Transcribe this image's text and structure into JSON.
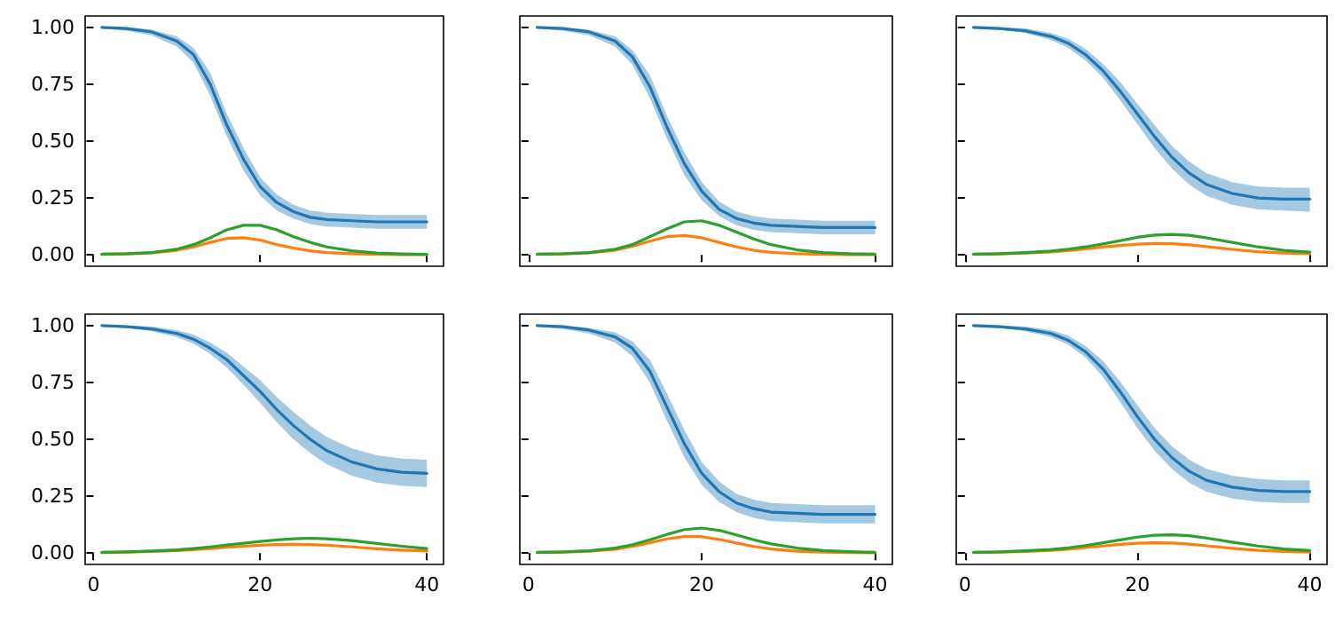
{
  "chart_data": [
    {
      "type": "line",
      "tick_labels": "y",
      "x": [
        1,
        4,
        7,
        10,
        12,
        14,
        16,
        18,
        20,
        22,
        24,
        26,
        28,
        31,
        34,
        37,
        40
      ],
      "xlim": [
        -1,
        42
      ],
      "ylim": [
        -0.05,
        1.05
      ],
      "xticks": [
        {
          "value": 0,
          "label": null
        },
        {
          "value": 20,
          "label": null
        },
        {
          "value": 40,
          "label": null
        }
      ],
      "yticks": [
        {
          "value": 0,
          "label": "0.00"
        },
        {
          "value": 0.25,
          "label": "0.25"
        },
        {
          "value": 0.5,
          "label": "0.50"
        },
        {
          "value": 0.75,
          "label": "0.75"
        },
        {
          "value": 1,
          "label": "1.00"
        }
      ],
      "series": [
        {
          "color": "#1f77b4",
          "values": [
            1.0,
            0.995,
            0.98,
            0.94,
            0.88,
            0.75,
            0.57,
            0.42,
            0.3,
            0.23,
            0.19,
            0.165,
            0.155,
            0.15,
            0.145,
            0.145,
            0.145
          ],
          "lower": [
            0.995,
            0.985,
            0.965,
            0.915,
            0.845,
            0.7,
            0.52,
            0.37,
            0.26,
            0.195,
            0.16,
            0.135,
            0.125,
            0.12,
            0.115,
            0.115,
            0.115
          ],
          "upper": [
            1.0,
            1.0,
            0.99,
            0.96,
            0.91,
            0.8,
            0.62,
            0.47,
            0.34,
            0.265,
            0.22,
            0.195,
            0.185,
            0.18,
            0.175,
            0.175,
            0.175
          ]
        },
        {
          "color": "#ff7f0e",
          "values": [
            0.002,
            0.004,
            0.009,
            0.02,
            0.035,
            0.055,
            0.072,
            0.075,
            0.065,
            0.045,
            0.03,
            0.018,
            0.01,
            0.005,
            0.002,
            0.001,
            0.001
          ]
        },
        {
          "color": "#2ca02c",
          "values": [
            0.003,
            0.005,
            0.01,
            0.025,
            0.045,
            0.075,
            0.11,
            0.13,
            0.13,
            0.11,
            0.08,
            0.055,
            0.035,
            0.018,
            0.008,
            0.004,
            0.002
          ]
        }
      ]
    },
    {
      "type": "line",
      "tick_labels": false,
      "x": [
        1,
        4,
        7,
        10,
        12,
        14,
        16,
        18,
        20,
        22,
        24,
        26,
        28,
        31,
        34,
        37,
        40
      ],
      "xlim": [
        -1,
        42
      ],
      "ylim": [
        -0.05,
        1.05
      ],
      "xticks": [
        {
          "value": 0,
          "label": null
        },
        {
          "value": 20,
          "label": null
        },
        {
          "value": 40,
          "label": null
        }
      ],
      "yticks": [
        {
          "value": 0,
          "label": null
        },
        {
          "value": 0.25,
          "label": null
        },
        {
          "value": 0.5,
          "label": null
        },
        {
          "value": 0.75,
          "label": null
        },
        {
          "value": 1,
          "label": null
        }
      ],
      "series": [
        {
          "color": "#1f77b4",
          "values": [
            1.0,
            0.995,
            0.98,
            0.94,
            0.87,
            0.74,
            0.56,
            0.4,
            0.28,
            0.2,
            0.16,
            0.14,
            0.13,
            0.125,
            0.12,
            0.12,
            0.12
          ],
          "lower": [
            0.995,
            0.985,
            0.965,
            0.915,
            0.835,
            0.69,
            0.51,
            0.35,
            0.24,
            0.17,
            0.13,
            0.11,
            0.1,
            0.095,
            0.09,
            0.09,
            0.09
          ],
          "upper": [
            1.0,
            1.0,
            0.99,
            0.96,
            0.9,
            0.79,
            0.61,
            0.45,
            0.32,
            0.235,
            0.19,
            0.17,
            0.16,
            0.155,
            0.15,
            0.15,
            0.15
          ]
        },
        {
          "color": "#ff7f0e",
          "values": [
            0.002,
            0.004,
            0.009,
            0.02,
            0.038,
            0.06,
            0.08,
            0.085,
            0.075,
            0.055,
            0.035,
            0.02,
            0.011,
            0.005,
            0.002,
            0.001,
            0.001
          ]
        },
        {
          "color": "#2ca02c",
          "values": [
            0.003,
            0.005,
            0.01,
            0.025,
            0.045,
            0.08,
            0.115,
            0.145,
            0.15,
            0.13,
            0.1,
            0.07,
            0.045,
            0.022,
            0.01,
            0.005,
            0.003
          ]
        }
      ]
    },
    {
      "type": "line",
      "tick_labels": false,
      "x": [
        1,
        4,
        7,
        10,
        12,
        14,
        16,
        18,
        20,
        22,
        24,
        26,
        28,
        31,
        34,
        37,
        40
      ],
      "xlim": [
        -1,
        42
      ],
      "ylim": [
        -0.05,
        1.05
      ],
      "xticks": [
        {
          "value": 0,
          "label": null
        },
        {
          "value": 20,
          "label": null
        },
        {
          "value": 40,
          "label": null
        }
      ],
      "yticks": [
        {
          "value": 0,
          "label": null
        },
        {
          "value": 0.25,
          "label": null
        },
        {
          "value": 0.5,
          "label": null
        },
        {
          "value": 0.75,
          "label": null
        },
        {
          "value": 1,
          "label": null
        }
      ],
      "series": [
        {
          "color": "#1f77b4",
          "values": [
            1.0,
            0.995,
            0.985,
            0.96,
            0.93,
            0.88,
            0.81,
            0.72,
            0.62,
            0.52,
            0.43,
            0.36,
            0.31,
            0.27,
            0.25,
            0.245,
            0.245
          ],
          "lower": [
            0.995,
            0.99,
            0.975,
            0.945,
            0.91,
            0.855,
            0.78,
            0.68,
            0.575,
            0.47,
            0.38,
            0.31,
            0.26,
            0.22,
            0.2,
            0.195,
            0.19
          ],
          "upper": [
            1.0,
            1.0,
            0.995,
            0.975,
            0.95,
            0.905,
            0.84,
            0.76,
            0.665,
            0.57,
            0.48,
            0.41,
            0.36,
            0.32,
            0.3,
            0.295,
            0.295
          ]
        },
        {
          "color": "#ff7f0e",
          "values": [
            0.002,
            0.004,
            0.008,
            0.013,
            0.019,
            0.026,
            0.034,
            0.041,
            0.047,
            0.05,
            0.049,
            0.044,
            0.036,
            0.024,
            0.014,
            0.008,
            0.005
          ]
        },
        {
          "color": "#2ca02c",
          "values": [
            0.003,
            0.005,
            0.01,
            0.017,
            0.025,
            0.035,
            0.048,
            0.062,
            0.077,
            0.087,
            0.09,
            0.086,
            0.075,
            0.055,
            0.035,
            0.02,
            0.012
          ]
        }
      ]
    },
    {
      "type": "line",
      "x": [
        1,
        4,
        7,
        10,
        12,
        14,
        16,
        18,
        20,
        22,
        24,
        26,
        28,
        31,
        34,
        37,
        40
      ],
      "xlim": [
        -1,
        42
      ],
      "ylim": [
        -0.05,
        1.05
      ],
      "xticks": [
        0,
        20,
        40
      ],
      "yticks": [
        {
          "value": 0,
          "label": "0.00"
        },
        {
          "value": 0.25,
          "label": "0.25"
        },
        {
          "value": 0.5,
          "label": "0.50"
        },
        {
          "value": 0.75,
          "label": "0.75"
        },
        {
          "value": 1,
          "label": "1.00"
        }
      ],
      "series": [
        {
          "color": "#1f77b4",
          "values": [
            1.0,
            0.995,
            0.985,
            0.965,
            0.94,
            0.9,
            0.85,
            0.78,
            0.71,
            0.63,
            0.56,
            0.5,
            0.45,
            0.4,
            0.37,
            0.355,
            0.35
          ],
          "lower": [
            0.995,
            0.99,
            0.975,
            0.95,
            0.92,
            0.875,
            0.815,
            0.74,
            0.66,
            0.575,
            0.5,
            0.44,
            0.39,
            0.34,
            0.31,
            0.295,
            0.29
          ],
          "upper": [
            1.0,
            1.0,
            0.995,
            0.98,
            0.96,
            0.925,
            0.88,
            0.82,
            0.76,
            0.685,
            0.62,
            0.56,
            0.51,
            0.46,
            0.43,
            0.415,
            0.41
          ]
        },
        {
          "color": "#ff7f0e",
          "values": [
            0.002,
            0.004,
            0.007,
            0.011,
            0.015,
            0.02,
            0.025,
            0.03,
            0.034,
            0.037,
            0.038,
            0.037,
            0.034,
            0.027,
            0.019,
            0.013,
            0.009
          ]
        },
        {
          "color": "#2ca02c",
          "values": [
            0.003,
            0.005,
            0.009,
            0.014,
            0.02,
            0.027,
            0.035,
            0.043,
            0.051,
            0.058,
            0.063,
            0.065,
            0.063,
            0.055,
            0.042,
            0.03,
            0.02
          ]
        }
      ]
    },
    {
      "type": "line",
      "tick_labels": "x",
      "x": [
        1,
        4,
        7,
        10,
        12,
        14,
        16,
        18,
        20,
        22,
        24,
        26,
        28,
        31,
        34,
        37,
        40
      ],
      "xlim": [
        -1,
        42
      ],
      "ylim": [
        -0.05,
        1.05
      ],
      "xticks": [
        0,
        20,
        40
      ],
      "yticks": [
        {
          "value": 0,
          "label": null
        },
        {
          "value": 0.25,
          "label": null
        },
        {
          "value": 0.5,
          "label": null
        },
        {
          "value": 0.75,
          "label": null
        },
        {
          "value": 1,
          "label": null
        }
      ],
      "series": [
        {
          "color": "#1f77b4",
          "values": [
            1.0,
            0.995,
            0.98,
            0.95,
            0.9,
            0.8,
            0.64,
            0.48,
            0.35,
            0.27,
            0.22,
            0.195,
            0.18,
            0.175,
            0.17,
            0.17,
            0.17
          ],
          "lower": [
            0.995,
            0.985,
            0.965,
            0.925,
            0.865,
            0.75,
            0.58,
            0.42,
            0.3,
            0.225,
            0.18,
            0.155,
            0.14,
            0.135,
            0.13,
            0.13,
            0.13
          ],
          "upper": [
            1.0,
            1.0,
            0.99,
            0.97,
            0.93,
            0.85,
            0.7,
            0.54,
            0.4,
            0.315,
            0.26,
            0.235,
            0.22,
            0.215,
            0.21,
            0.21,
            0.21
          ]
        },
        {
          "color": "#ff7f0e",
          "values": [
            0.002,
            0.004,
            0.008,
            0.017,
            0.029,
            0.045,
            0.062,
            0.073,
            0.072,
            0.06,
            0.044,
            0.029,
            0.018,
            0.008,
            0.004,
            0.002,
            0.001
          ]
        },
        {
          "color": "#2ca02c",
          "values": [
            0.003,
            0.005,
            0.01,
            0.022,
            0.037,
            0.058,
            0.082,
            0.103,
            0.11,
            0.1,
            0.08,
            0.058,
            0.04,
            0.022,
            0.011,
            0.006,
            0.003
          ]
        }
      ]
    },
    {
      "type": "line",
      "tick_labels": "x",
      "x": [
        1,
        4,
        7,
        10,
        12,
        14,
        16,
        18,
        20,
        22,
        24,
        26,
        28,
        31,
        34,
        37,
        40
      ],
      "xlim": [
        -1,
        42
      ],
      "ylim": [
        -0.05,
        1.05
      ],
      "xticks": [
        0,
        20,
        40
      ],
      "yticks": [
        {
          "value": 0,
          "label": null
        },
        {
          "value": 0.25,
          "label": null
        },
        {
          "value": 0.5,
          "label": null
        },
        {
          "value": 0.75,
          "label": null
        },
        {
          "value": 1,
          "label": null
        }
      ],
      "series": [
        {
          "color": "#1f77b4",
          "values": [
            1.0,
            0.995,
            0.985,
            0.965,
            0.935,
            0.885,
            0.81,
            0.71,
            0.6,
            0.5,
            0.42,
            0.36,
            0.32,
            0.29,
            0.275,
            0.27,
            0.27
          ],
          "lower": [
            0.995,
            0.99,
            0.975,
            0.95,
            0.915,
            0.86,
            0.775,
            0.665,
            0.55,
            0.45,
            0.37,
            0.31,
            0.27,
            0.24,
            0.225,
            0.22,
            0.22
          ],
          "upper": [
            1.0,
            1.0,
            0.995,
            0.98,
            0.955,
            0.91,
            0.845,
            0.755,
            0.65,
            0.55,
            0.47,
            0.41,
            0.37,
            0.34,
            0.325,
            0.32,
            0.32
          ]
        },
        {
          "color": "#ff7f0e",
          "values": [
            0.002,
            0.004,
            0.007,
            0.012,
            0.017,
            0.024,
            0.031,
            0.038,
            0.043,
            0.045,
            0.044,
            0.039,
            0.032,
            0.021,
            0.012,
            0.007,
            0.004
          ]
        },
        {
          "color": "#2ca02c",
          "values": [
            0.003,
            0.005,
            0.01,
            0.016,
            0.023,
            0.033,
            0.045,
            0.058,
            0.07,
            0.078,
            0.08,
            0.076,
            0.066,
            0.048,
            0.031,
            0.018,
            0.011
          ]
        }
      ]
    }
  ]
}
